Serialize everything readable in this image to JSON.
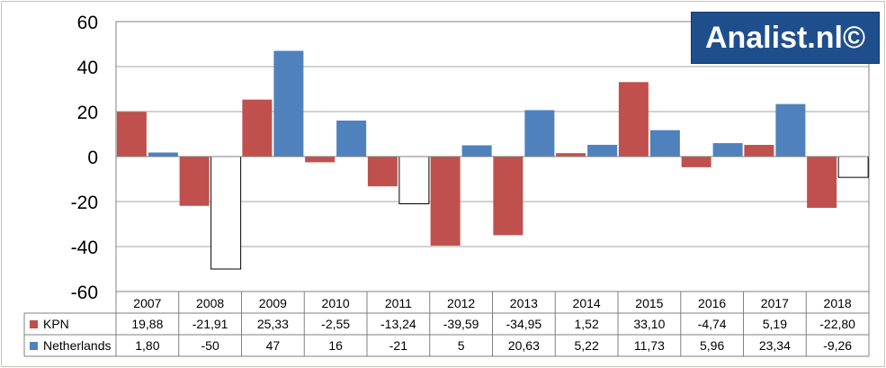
{
  "brand": {
    "logo_text": "Analist.nl©",
    "logo_color": "#1f4e8c"
  },
  "chart_data": {
    "type": "bar",
    "categories": [
      "2007",
      "2008",
      "2009",
      "2010",
      "2011",
      "2012",
      "2013",
      "2014",
      "2015",
      "2016",
      "2017",
      "2018"
    ],
    "ylim": [
      -60,
      60
    ],
    "yticks": [
      60,
      40,
      20,
      0,
      -20,
      -40,
      -60
    ],
    "ytick_labels": [
      "60",
      "40",
      "20",
      "0",
      "-20",
      "-40",
      "-60"
    ],
    "grid": true,
    "legend": "data-table",
    "negative_fill_series": "Netherlands",
    "series": [
      {
        "name": "KPN",
        "color": "#c0504d",
        "values": [
          19.88,
          -21.91,
          25.33,
          -2.55,
          -13.24,
          -39.59,
          -34.95,
          1.52,
          33.1,
          -4.74,
          5.19,
          -22.8
        ],
        "labels": [
          "19,88",
          "-21,91",
          "25,33",
          "-2,55",
          "-13,24",
          "-39,59",
          "-34,95",
          "1,52",
          "33,10",
          "-4,74",
          "5,19",
          "-22,80"
        ]
      },
      {
        "name": "Netherlands",
        "color": "#4f81bd",
        "values": [
          1.8,
          -50,
          47,
          16,
          -21,
          5,
          20.63,
          5.22,
          11.73,
          5.96,
          23.34,
          -9.26
        ],
        "labels": [
          "1,80",
          "-50",
          "47",
          "16",
          "-21",
          "5",
          "20,63",
          "5,22",
          "11,73",
          "5,96",
          "23,34",
          "-9,26"
        ]
      }
    ]
  }
}
